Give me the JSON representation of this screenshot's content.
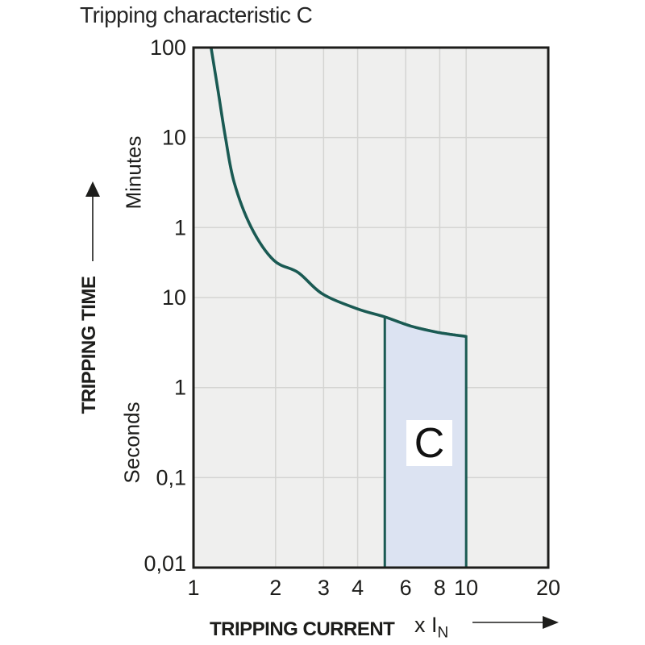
{
  "title": "Tripping characteristic C",
  "chart_data": {
    "type": "line",
    "title": "Tripping characteristic C",
    "x_axis": {
      "label": "TRIPPING CURRENT",
      "unit": "x I",
      "unit_sub": "N",
      "scale": "log",
      "range": [
        1,
        20
      ],
      "tick_labels": [
        "1",
        "2",
        "3",
        "4",
        "6",
        "8",
        "10",
        "20"
      ],
      "tick_values": [
        1,
        2,
        3,
        4,
        6,
        8,
        10,
        20
      ],
      "gridline_values": [
        2,
        3,
        4,
        6,
        8,
        10
      ]
    },
    "y_axis": {
      "label": "TRIPPING TIME",
      "scale": "log",
      "unit_upper": "Minutes",
      "unit_lower": "Seconds",
      "range_seconds": [
        0.01,
        6000
      ],
      "ticks": [
        {
          "label": "100",
          "seconds": 6000,
          "unit": "minutes"
        },
        {
          "label": "10",
          "seconds": 600,
          "unit": "minutes"
        },
        {
          "label": "1",
          "seconds": 60,
          "unit": "minutes"
        },
        {
          "label": "10",
          "seconds": 10,
          "unit": "seconds"
        },
        {
          "label": "1",
          "seconds": 1,
          "unit": "seconds"
        },
        {
          "label": "0,1",
          "seconds": 0.1,
          "unit": "seconds"
        },
        {
          "label": "0,01",
          "seconds": 0.01,
          "unit": "seconds"
        }
      ],
      "gridline_seconds": [
        600,
        60,
        10,
        1,
        0.1
      ]
    },
    "series": [
      {
        "name": "C tripping curve",
        "points_x_multiple_vs_seconds": [
          [
            1.16,
            6000
          ],
          [
            1.23,
            2000
          ],
          [
            1.31,
            600
          ],
          [
            1.41,
            190
          ],
          [
            1.63,
            60
          ],
          [
            1.97,
            26
          ],
          [
            2.42,
            19
          ],
          [
            2.97,
            11
          ],
          [
            3.99,
            7.5
          ],
          [
            5.03,
            6.1
          ],
          [
            6.3,
            4.8
          ],
          [
            7.9,
            4.1
          ],
          [
            10,
            3.7
          ]
        ]
      }
    ],
    "region": {
      "label": "C",
      "x_range": [
        5.03,
        10
      ],
      "bottom_seconds": 0.01,
      "top_follows_curve": true
    },
    "colors": {
      "curve": "#1a5a53",
      "region_fill": "#dce3f2",
      "plot_bg": "#efefee",
      "grid": "#d4d4d2",
      "axis": "#1d1d1b",
      "text": "#1d1d1b"
    }
  }
}
